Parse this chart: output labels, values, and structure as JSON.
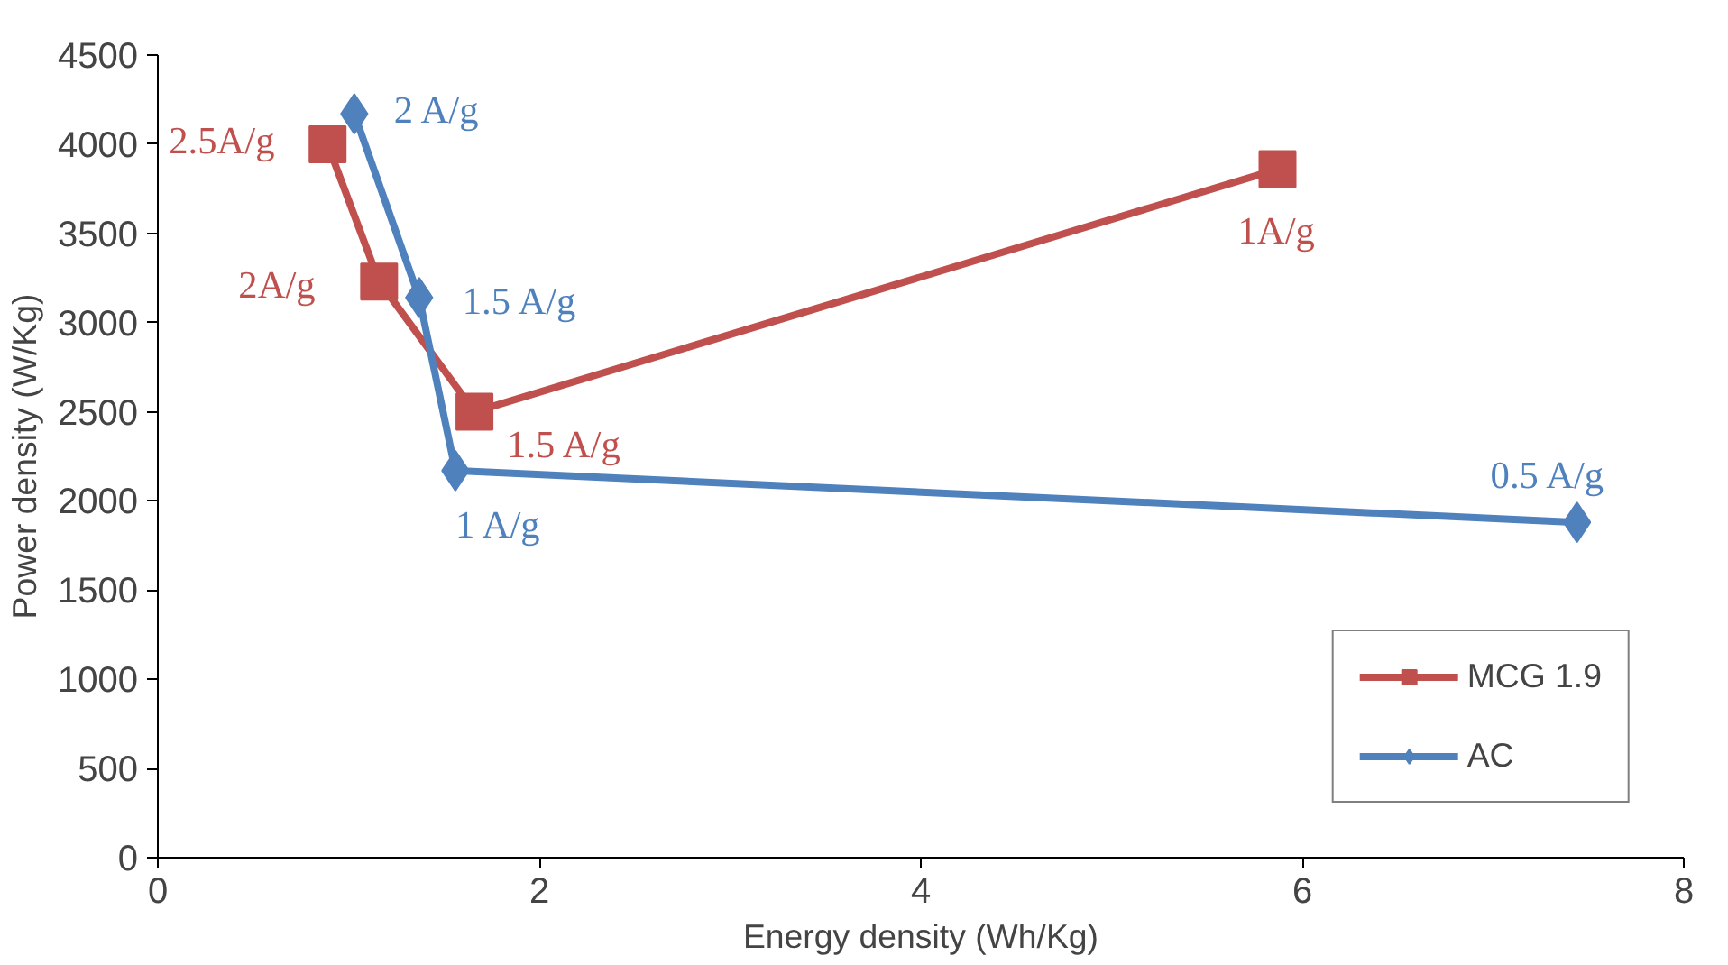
{
  "chart_data": {
    "type": "line",
    "xlabel": "Energy density (Wh/Kg)",
    "ylabel": "Power density (W/Kg)",
    "xlim": [
      0,
      8
    ],
    "xticks": [
      0,
      2,
      4,
      6,
      8
    ],
    "ylim": [
      0,
      4500
    ],
    "yticks": [
      0,
      500,
      1000,
      1500,
      2000,
      2500,
      3000,
      3500,
      4000,
      4500
    ],
    "grid": false,
    "legend": "bottom right",
    "line_style": "solid",
    "series": [
      {
        "name": "MCG 1.9",
        "color": "#c0504d",
        "marker": "square",
        "x": [
          0.89,
          1.16,
          1.66,
          5.87
        ],
        "values": [
          4000,
          3230,
          2500,
          3860
        ]
      },
      {
        "name": "AC",
        "color": "#4f81bd",
        "marker": "diamond",
        "x": [
          1.03,
          1.37,
          1.56,
          7.44
        ],
        "values": [
          4170,
          3140,
          2170,
          1880
        ]
      }
    ],
    "annotations": [
      {
        "text": "2.5A/g",
        "x": 0.89,
        "y": 4000
      },
      {
        "text": "2A/g",
        "x": 1.16,
        "y": 3230
      },
      {
        "text": "1.5 A/g",
        "x": 1.66,
        "y": 2500
      },
      {
        "text": "1A/g",
        "x": 5.87,
        "y": 3860
      },
      {
        "text": "2 A/g",
        "x": 1.03,
        "y": 4170
      },
      {
        "text": "1.5 A/g",
        "x": 1.37,
        "y": 3140
      },
      {
        "text": "1 A/g",
        "x": 1.56,
        "y": 2170
      },
      {
        "text": "0.5 A/g",
        "x": 7.44,
        "y": 1880
      }
    ]
  }
}
